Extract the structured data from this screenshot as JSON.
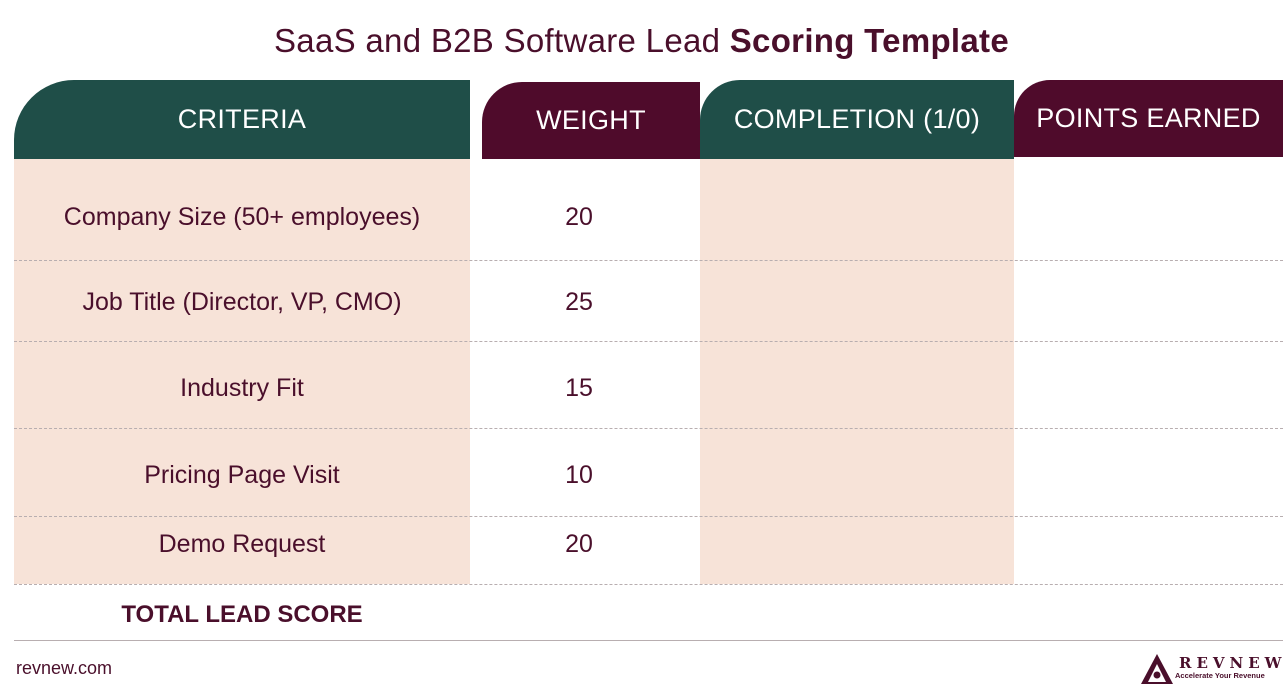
{
  "title": {
    "regular": "SaaS and B2B Software Lead ",
    "bold": "Scoring Template"
  },
  "headers": {
    "criteria": "CRITERIA",
    "weight": "WEIGHT",
    "completion": "COMPLETION (1/0)",
    "points": "POINTS EARNED"
  },
  "rows": [
    {
      "criteria": "Company Size (50+ employees)",
      "weight": "20"
    },
    {
      "criteria": "Job Title (Director, VP, CMO)",
      "weight": "25"
    },
    {
      "criteria": "Industry Fit",
      "weight": "15"
    },
    {
      "criteria": "Pricing Page Visit",
      "weight": "10"
    },
    {
      "criteria": "Demo Request",
      "weight": "20"
    }
  ],
  "total_label": "TOTAL LEAD SCORE",
  "footer": {
    "url": "revnew.com",
    "logo_word": "REVNEW",
    "logo_tagline": "Accelerate Your Revenue"
  },
  "colors": {
    "green": "#1f4e48",
    "maroon": "#4f0b2b",
    "peach": "#f7e3d8",
    "text": "#4a0f2b"
  }
}
